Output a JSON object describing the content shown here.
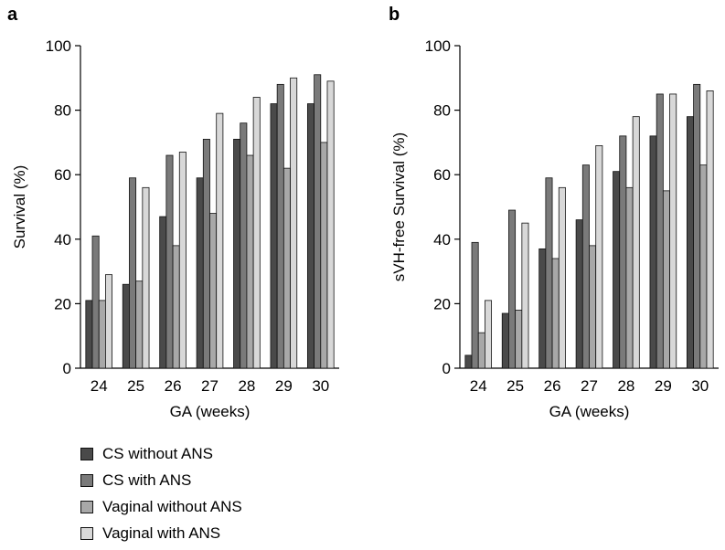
{
  "chart_data": [
    {
      "panel": "a",
      "type": "bar",
      "xlabel": "GA (weeks)",
      "ylabel": "Survival (%)",
      "ylim": [
        0,
        100
      ],
      "yticks": [
        0,
        20,
        40,
        60,
        80,
        100
      ],
      "grid": false,
      "categories": [
        "24",
        "25",
        "26",
        "27",
        "28",
        "29",
        "30"
      ],
      "series": [
        {
          "name": "CS without ANS",
          "color": "#4a4a4a",
          "values": [
            21,
            26,
            47,
            59,
            71,
            82,
            82
          ]
        },
        {
          "name": "CS with ANS",
          "color": "#7a7a7a",
          "values": [
            41,
            59,
            66,
            71,
            76,
            88,
            91
          ]
        },
        {
          "name": "Vaginal without ANS",
          "color": "#a8a8a8",
          "values": [
            21,
            27,
            38,
            48,
            66,
            62,
            70
          ]
        },
        {
          "name": "Vaginal with ANS",
          "color": "#d8d8d8",
          "values": [
            29,
            56,
            67,
            79,
            84,
            90,
            89
          ]
        }
      ]
    },
    {
      "panel": "b",
      "type": "bar",
      "xlabel": "GA (weeks)",
      "ylabel": "sVH-free Survival (%)",
      "ylim": [
        0,
        100
      ],
      "yticks": [
        0,
        20,
        40,
        60,
        80,
        100
      ],
      "grid": false,
      "categories": [
        "24",
        "25",
        "26",
        "27",
        "28",
        "29",
        "30"
      ],
      "series": [
        {
          "name": "CS without ANS",
          "color": "#4a4a4a",
          "values": [
            4,
            17,
            37,
            46,
            61,
            72,
            78
          ]
        },
        {
          "name": "CS with ANS",
          "color": "#7a7a7a",
          "values": [
            39,
            49,
            59,
            63,
            72,
            85,
            88
          ]
        },
        {
          "name": "Vaginal without ANS",
          "color": "#a8a8a8",
          "values": [
            11,
            18,
            34,
            38,
            56,
            55,
            63
          ]
        },
        {
          "name": "Vaginal with ANS",
          "color": "#d8d8d8",
          "values": [
            21,
            45,
            56,
            69,
            78,
            85,
            86
          ]
        }
      ]
    }
  ],
  "legend": {
    "placement": "bottom-left",
    "items": [
      {
        "label": "CS without ANS",
        "color": "#4a4a4a"
      },
      {
        "label": "CS with ANS",
        "color": "#7a7a7a"
      },
      {
        "label": "Vaginal without ANS",
        "color": "#a8a8a8"
      },
      {
        "label": "Vaginal with ANS",
        "color": "#d8d8d8"
      }
    ]
  }
}
